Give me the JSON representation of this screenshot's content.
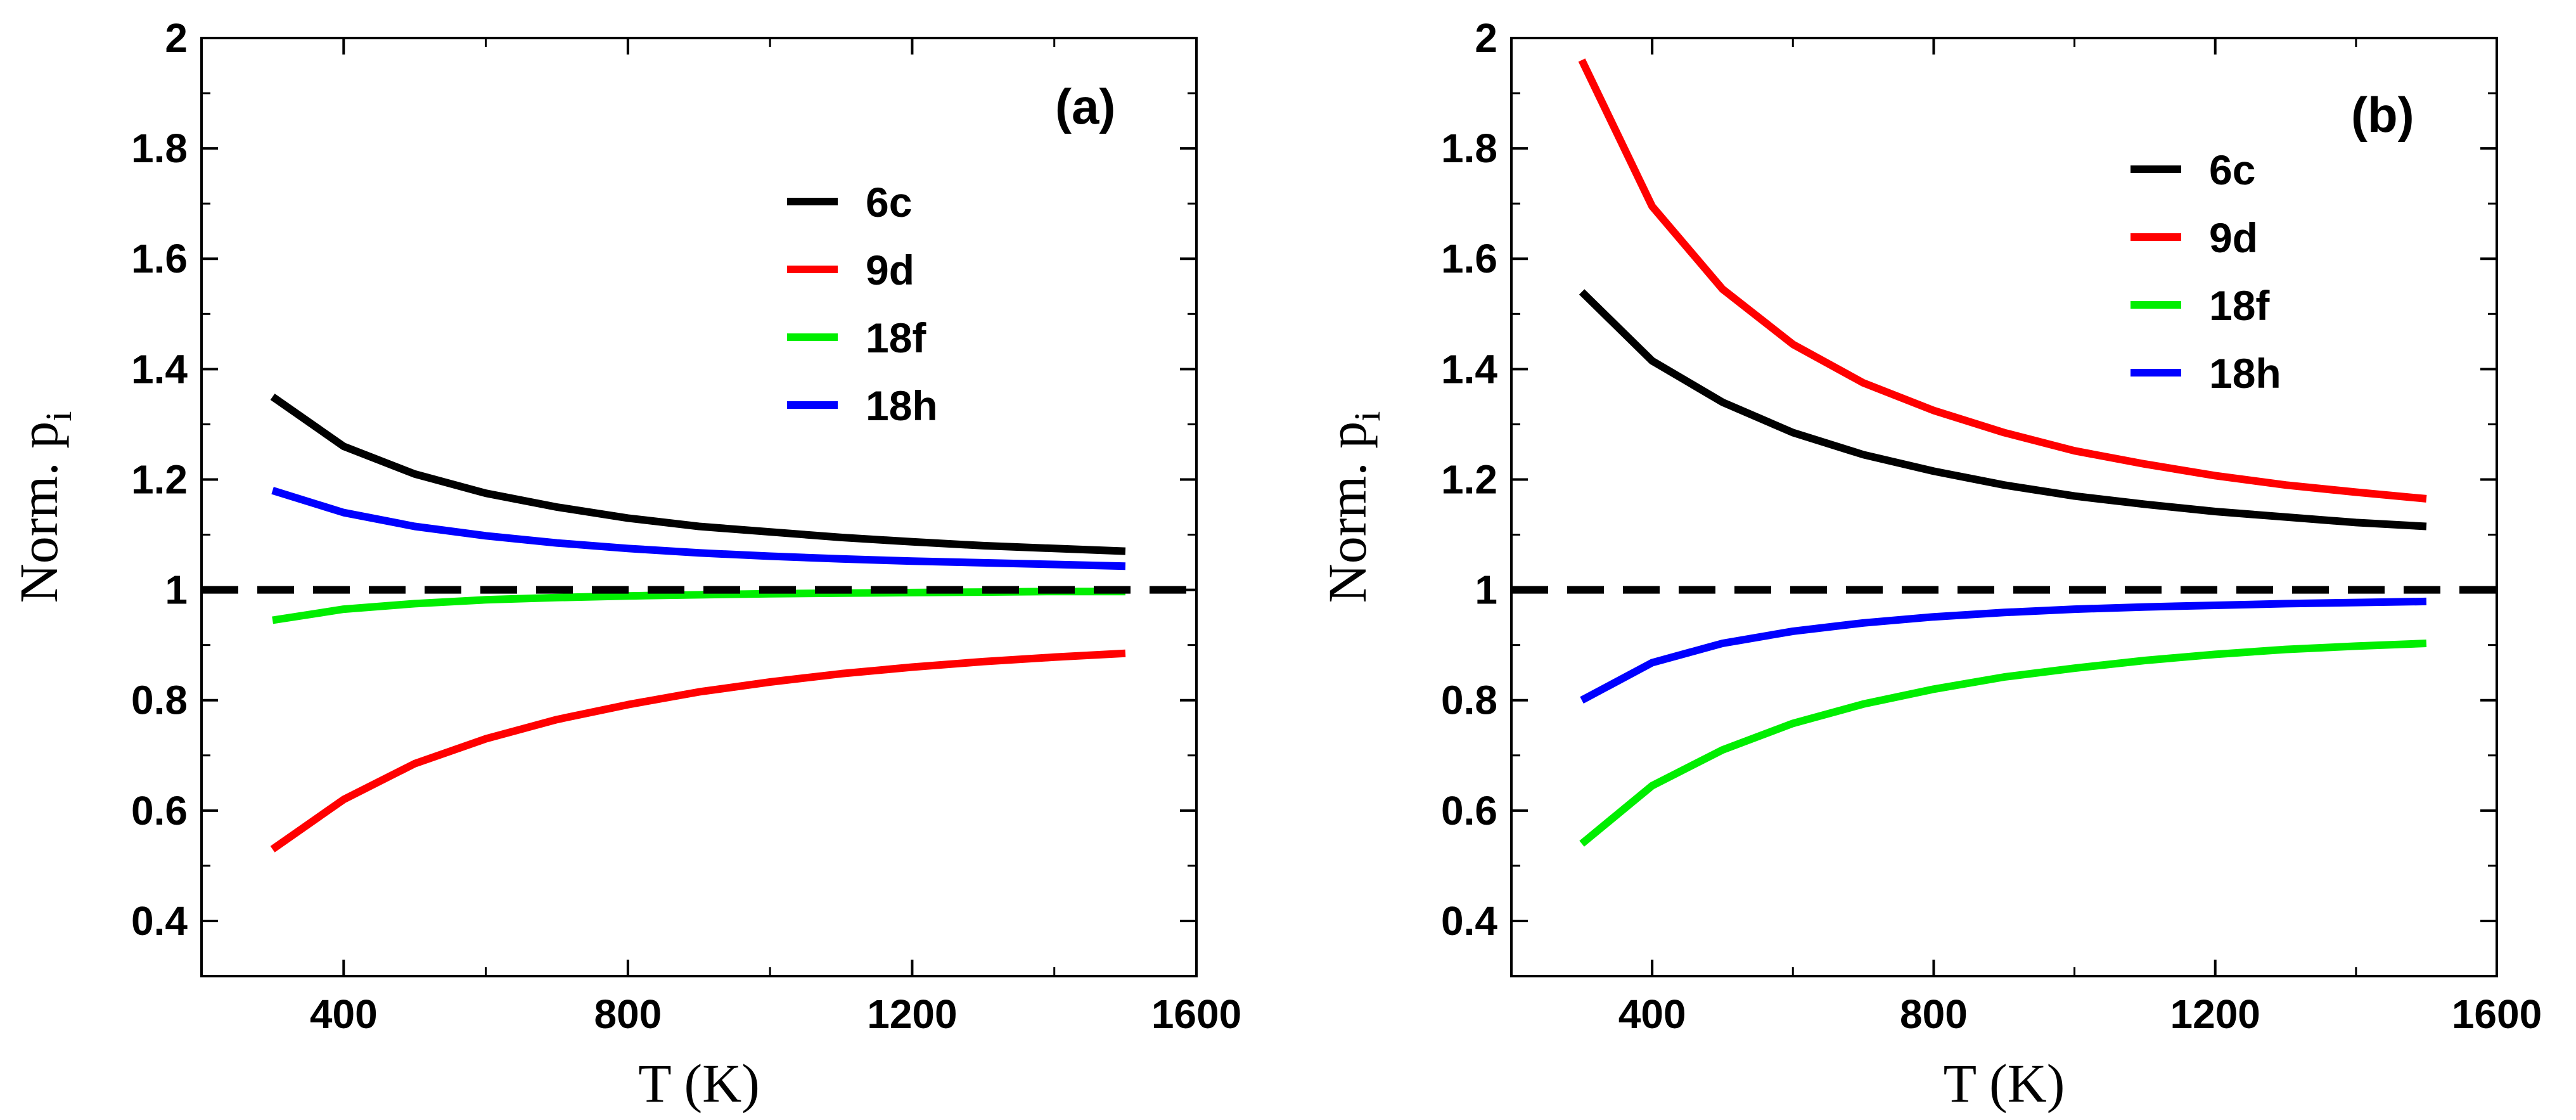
{
  "chart_data": [
    {
      "type": "line",
      "panel_label": "(a)",
      "xlabel": "T (K)",
      "ylabel_main": "Norm. p",
      "ylabel_sub": "i",
      "xlim": [
        200,
        1600
      ],
      "ylim": [
        0.3,
        2.0
      ],
      "xticks": [
        400,
        800,
        1200,
        1600
      ],
      "xtick_labels": [
        "400",
        "800",
        "1200",
        "1600"
      ],
      "yticks": [
        0.4,
        0.6,
        0.8,
        1.0,
        1.2,
        1.4,
        1.6,
        1.8,
        2.0
      ],
      "ytick_labels": [
        "0.4",
        "0.6",
        "0.8",
        "1",
        "1.2",
        "1.4",
        "1.6",
        "1.8",
        "2"
      ],
      "reference_line": {
        "y": 1.0,
        "style": "dashed",
        "color": "#000000"
      },
      "legend_position": "top-right",
      "x": [
        300,
        400,
        500,
        600,
        700,
        800,
        900,
        1000,
        1100,
        1200,
        1300,
        1400,
        1500
      ],
      "series": [
        {
          "name": "6c",
          "color": "#000000",
          "values": [
            1.35,
            1.26,
            1.21,
            1.175,
            1.15,
            1.13,
            1.115,
            1.105,
            1.095,
            1.087,
            1.08,
            1.075,
            1.07
          ]
        },
        {
          "name": "9d",
          "color": "#ff0000",
          "values": [
            0.53,
            0.62,
            0.685,
            0.73,
            0.765,
            0.792,
            0.815,
            0.833,
            0.848,
            0.86,
            0.87,
            0.878,
            0.885
          ]
        },
        {
          "name": "18f",
          "color": "#00ee00",
          "values": [
            0.945,
            0.965,
            0.975,
            0.982,
            0.986,
            0.989,
            0.991,
            0.993,
            0.994,
            0.995,
            0.996,
            0.997,
            0.997
          ]
        },
        {
          "name": "18h",
          "color": "#0000ff",
          "values": [
            1.18,
            1.14,
            1.115,
            1.098,
            1.085,
            1.075,
            1.067,
            1.061,
            1.056,
            1.052,
            1.049,
            1.046,
            1.043
          ]
        }
      ]
    },
    {
      "type": "line",
      "panel_label": "(b)",
      "xlabel": "T (K)",
      "ylabel_main": "Norm. p",
      "ylabel_sub": "i",
      "xlim": [
        200,
        1600
      ],
      "ylim": [
        0.3,
        2.0
      ],
      "xticks": [
        400,
        800,
        1200,
        1600
      ],
      "xtick_labels": [
        "400",
        "800",
        "1200",
        "1600"
      ],
      "yticks": [
        0.4,
        0.6,
        0.8,
        1.0,
        1.2,
        1.4,
        1.6,
        1.8,
        2.0
      ],
      "ytick_labels": [
        "0.4",
        "0.6",
        "0.8",
        "1",
        "1.2",
        "1.4",
        "1.6",
        "1.8",
        "2"
      ],
      "reference_line": {
        "y": 1.0,
        "style": "dashed",
        "color": "#000000"
      },
      "legend_position": "top-right",
      "x": [
        300,
        400,
        500,
        600,
        700,
        800,
        900,
        1000,
        1100,
        1200,
        1300,
        1400,
        1500
      ],
      "series": [
        {
          "name": "6c",
          "color": "#000000",
          "values": [
            1.54,
            1.415,
            1.34,
            1.285,
            1.245,
            1.215,
            1.19,
            1.17,
            1.155,
            1.142,
            1.132,
            1.122,
            1.115
          ]
        },
        {
          "name": "9d",
          "color": "#ff0000",
          "values": [
            1.96,
            1.695,
            1.545,
            1.445,
            1.375,
            1.325,
            1.285,
            1.252,
            1.228,
            1.207,
            1.19,
            1.177,
            1.165
          ]
        },
        {
          "name": "18f",
          "color": "#00ee00",
          "values": [
            0.54,
            0.645,
            0.71,
            0.758,
            0.793,
            0.82,
            0.842,
            0.858,
            0.872,
            0.883,
            0.892,
            0.898,
            0.903
          ]
        },
        {
          "name": "18h",
          "color": "#0000ff",
          "values": [
            0.8,
            0.868,
            0.903,
            0.925,
            0.94,
            0.951,
            0.959,
            0.965,
            0.969,
            0.972,
            0.975,
            0.977,
            0.979
          ]
        }
      ]
    }
  ]
}
